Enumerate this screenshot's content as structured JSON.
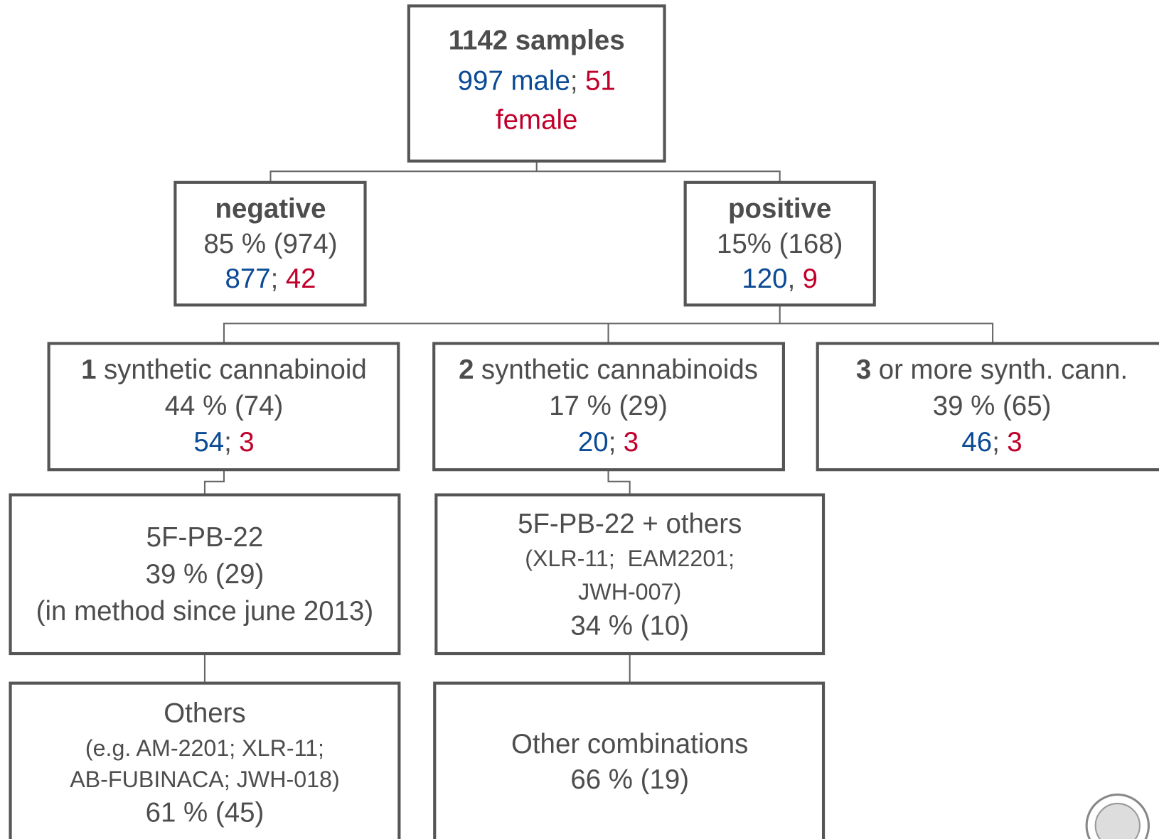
{
  "nodes": [
    {
      "lines": [
        [
          "1142 samples"
        ],
        [
          "997 male",
          ";",
          "51"
        ],
        [
          "female"
        ]
      ]
    },
    {
      "lines": [
        [
          "negative"
        ],
        [
          "85 % (974)"
        ],
        [
          "877",
          ";",
          "42"
        ]
      ]
    },
    {
      "lines": [
        [
          "positive"
        ],
        [
          "15% (168)"
        ],
        [
          "120",
          ",",
          "9"
        ]
      ]
    },
    {
      "lines": [
        [
          "1",
          "synthetic cannabinoid"
        ],
        [
          "44 % (74)"
        ],
        [
          "54",
          ";",
          "3"
        ]
      ]
    },
    {
      "lines": [
        [
          "2",
          "synthetic cannabinoids"
        ],
        [
          "17 % (29)"
        ],
        [
          "20",
          ";",
          "3"
        ]
      ]
    },
    {
      "lines": [
        [
          "3",
          "or more synth. cann."
        ],
        [
          "39 % (65)"
        ],
        [
          "46",
          ";",
          "3"
        ]
      ]
    },
    {
      "lines": [
        [
          "5F-PB-22"
        ],
        [
          "39 % (29)"
        ],
        [
          "(in method since june 2013)"
        ]
      ]
    },
    {
      "lines": [
        [
          "5F-PB-22 + others"
        ],
        [
          "(XLR-11;  EAM2201;"
        ],
        [
          "JWH-007)"
        ],
        [
          "34 % (10)"
        ]
      ]
    },
    {
      "lines": [
        [
          "Others"
        ],
        [
          "(e.g. AM-2201; XLR-11;"
        ],
        [
          "AB-FUBINACA; JWH-018)"
        ],
        [
          "61 % (45)"
        ]
      ]
    },
    {
      "lines": [
        [
          "Other combinations"
        ],
        [
          "66 % (19)"
        ]
      ]
    }
  ]
}
